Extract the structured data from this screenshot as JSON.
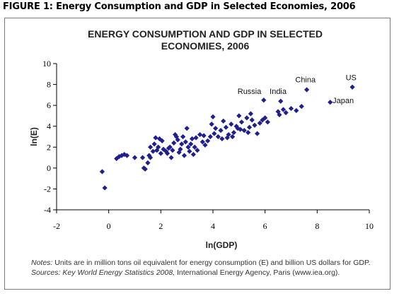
{
  "figure_caption": "FIGURE 1: Energy Consumption and GDP in Selected Economies, 2006",
  "colors": {
    "marker": "#1f1f8f",
    "axis": "#000000",
    "frame": "#7a7a7a",
    "note_text": "#333333"
  },
  "chart_data": {
    "type": "scatter",
    "title_line1": "ENERGY CONSUMPTION AND GDP IN SELECTED",
    "title_line2": "ECONOMIES, 2006",
    "xlabel": "ln(GDP)",
    "ylabel": "ln(E)",
    "xlim": [
      -2,
      10
    ],
    "ylim": [
      -4,
      10
    ],
    "xticks": [
      -2,
      0,
      2,
      4,
      6,
      8,
      10
    ],
    "yticks": [
      -4,
      -2,
      0,
      2,
      4,
      6,
      8,
      10
    ],
    "grid": false,
    "marker": "diamond",
    "points": [
      [
        -0.25,
        -0.35
      ],
      [
        -0.15,
        -1.9
      ],
      [
        0.3,
        0.9
      ],
      [
        0.4,
        1.1
      ],
      [
        0.5,
        1.2
      ],
      [
        0.6,
        1.3
      ],
      [
        0.7,
        1.2
      ],
      [
        1.0,
        1.0
      ],
      [
        1.3,
        1.0
      ],
      [
        1.35,
        0.0
      ],
      [
        1.4,
        -0.1
      ],
      [
        1.5,
        0.5
      ],
      [
        1.55,
        1.2
      ],
      [
        1.6,
        1.0
      ],
      [
        1.6,
        2.0
      ],
      [
        1.7,
        1.6
      ],
      [
        1.75,
        2.3
      ],
      [
        1.8,
        2.9
      ],
      [
        1.85,
        1.7
      ],
      [
        1.9,
        2.0
      ],
      [
        1.95,
        2.8
      ],
      [
        2.0,
        1.4
      ],
      [
        2.05,
        2.6
      ],
      [
        2.1,
        1.8
      ],
      [
        2.2,
        1.6
      ],
      [
        2.25,
        1.4
      ],
      [
        2.3,
        1.9
      ],
      [
        2.35,
        2.0
      ],
      [
        2.4,
        1.0
      ],
      [
        2.45,
        1.7
      ],
      [
        2.5,
        2.4
      ],
      [
        2.55,
        3.2
      ],
      [
        2.6,
        3.0
      ],
      [
        2.65,
        2.7
      ],
      [
        2.7,
        1.5
      ],
      [
        2.75,
        1.8
      ],
      [
        2.8,
        2.3
      ],
      [
        2.85,
        3.0
      ],
      [
        2.9,
        1.2
      ],
      [
        2.95,
        2.5
      ],
      [
        3.0,
        3.8
      ],
      [
        3.05,
        2.0
      ],
      [
        3.1,
        1.6
      ],
      [
        3.15,
        2.3
      ],
      [
        3.2,
        2.8
      ],
      [
        3.25,
        1.3
      ],
      [
        3.3,
        2.0
      ],
      [
        3.35,
        2.9
      ],
      [
        3.4,
        1.7
      ],
      [
        3.5,
        3.2
      ],
      [
        3.6,
        2.5
      ],
      [
        3.65,
        3.1
      ],
      [
        3.7,
        2.2
      ],
      [
        3.8,
        2.6
      ],
      [
        3.9,
        3.0
      ],
      [
        3.95,
        4.2
      ],
      [
        4.0,
        4.9
      ],
      [
        4.05,
        3.3
      ],
      [
        4.1,
        3.8
      ],
      [
        4.2,
        3.0
      ],
      [
        4.3,
        3.6
      ],
      [
        4.35,
        2.8
      ],
      [
        4.4,
        4.5
      ],
      [
        4.5,
        3.9
      ],
      [
        4.55,
        2.9
      ],
      [
        4.6,
        3.2
      ],
      [
        4.7,
        4.2
      ],
      [
        4.75,
        3.0
      ],
      [
        4.8,
        3.4
      ],
      [
        4.9,
        4.0
      ],
      [
        4.95,
        3.8
      ],
      [
        5.0,
        5.0
      ],
      [
        5.05,
        3.7
      ],
      [
        5.1,
        4.4
      ],
      [
        5.2,
        3.6
      ],
      [
        5.3,
        4.8
      ],
      [
        5.35,
        3.4
      ],
      [
        5.4,
        3.9
      ],
      [
        5.45,
        5.2
      ],
      [
        5.5,
        4.6
      ],
      [
        5.6,
        4.1
      ],
      [
        5.7,
        3.3
      ],
      [
        5.8,
        4.3
      ],
      [
        5.9,
        4.6
      ],
      [
        5.95,
        6.5
      ],
      [
        6.0,
        4.8
      ],
      [
        6.1,
        4.4
      ],
      [
        6.5,
        5.4
      ],
      [
        6.55,
        5.1
      ],
      [
        6.6,
        6.4
      ],
      [
        6.7,
        5.6
      ],
      [
        6.8,
        5.3
      ],
      [
        7.0,
        5.7
      ],
      [
        7.2,
        5.5
      ],
      [
        7.4,
        5.9
      ],
      [
        7.6,
        7.5
      ],
      [
        8.5,
        6.3
      ],
      [
        9.35,
        7.75
      ]
    ],
    "annotations": [
      {
        "text": "US",
        "x": 9.3,
        "y": 8.4
      },
      {
        "text": "China",
        "x": 7.55,
        "y": 8.2
      },
      {
        "text": "Russia",
        "x": 5.4,
        "y": 7.1
      },
      {
        "text": "India",
        "x": 6.5,
        "y": 7.1
      },
      {
        "text": "Japan",
        "x": 9.0,
        "y": 6.2
      }
    ]
  },
  "notes": {
    "notes_label": "Notes:",
    "notes_text": " Units are in million tons oil equivalent for energy consumption (E) and billion US dollars for GDP.",
    "sources_label": "Sources: Key World Energy Statistics 2008,",
    "sources_text": " International Energy Agency, Paris (www.iea.org)."
  }
}
